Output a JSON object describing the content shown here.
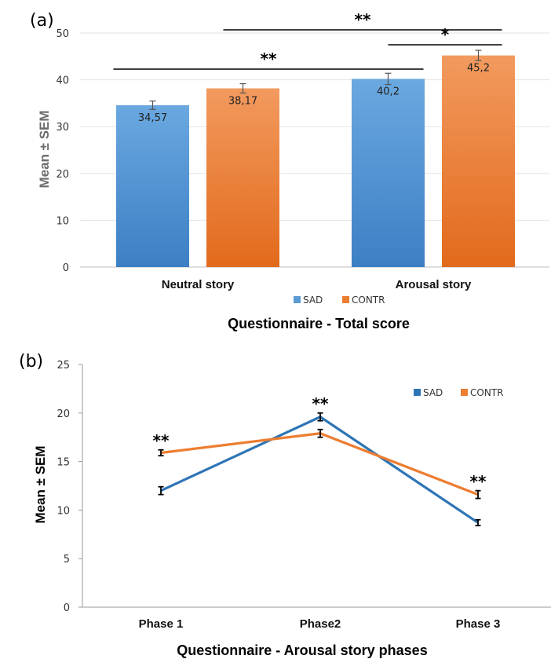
{
  "chart_data": [
    {
      "type": "bar",
      "panel_label": "(a)",
      "title": "Questionnaire - Total score",
      "xlabel": "",
      "ylabel": "Mean ± SEM",
      "ylim": [
        0,
        50
      ],
      "yticks": [
        "0",
        "10",
        "20",
        "30",
        "40",
        "50"
      ],
      "categories": [
        "Neutral story",
        "Arousal story"
      ],
      "series": [
        {
          "name": "SAD",
          "values": [
            34.57,
            40.2
          ],
          "sem": [
            0.9,
            1.2
          ],
          "labels": [
            "34,57",
            "40,2"
          ],
          "color": "#5b9bd5"
        },
        {
          "name": "CONTR",
          "values": [
            38.17,
            45.2
          ],
          "sem": [
            1.0,
            1.1
          ],
          "labels": [
            "38,17",
            "45,2"
          ],
          "color": "#ed7d31"
        }
      ],
      "legend_position": "bottom",
      "significance": [
        {
          "text": "**",
          "from": "SAD - Neutral story",
          "to": "SAD - Arousal story"
        },
        {
          "text": "**",
          "from": "CONTR - Neutral story",
          "to": "CONTR - Arousal story"
        },
        {
          "text": "*",
          "from": "SAD - Arousal story",
          "to": "CONTR - Arousal story"
        }
      ]
    },
    {
      "type": "line",
      "panel_label": "(b)",
      "title": "Questionnaire - Arousal story phases",
      "xlabel": "",
      "ylabel": "Mean ± SEM",
      "ylim": [
        0,
        25
      ],
      "yticks": [
        "0",
        "5",
        "10",
        "15",
        "20",
        "25"
      ],
      "categories": [
        "Phase 1",
        "Phase2",
        "Phase 3"
      ],
      "series": [
        {
          "name": "SAD",
          "values": [
            12.0,
            19.6,
            8.7
          ],
          "sem": [
            0.4,
            0.4,
            0.3
          ],
          "color": "#2e75b6"
        },
        {
          "name": "CONTR",
          "values": [
            15.9,
            17.9,
            11.6
          ],
          "sem": [
            0.3,
            0.4,
            0.4
          ],
          "color": "#ed7d31"
        }
      ],
      "legend_position": "top-right",
      "significance": [
        {
          "text": "**",
          "category": "Phase 1"
        },
        {
          "text": "**",
          "category": "Phase2"
        },
        {
          "text": "**",
          "category": "Phase 3"
        }
      ]
    }
  ]
}
